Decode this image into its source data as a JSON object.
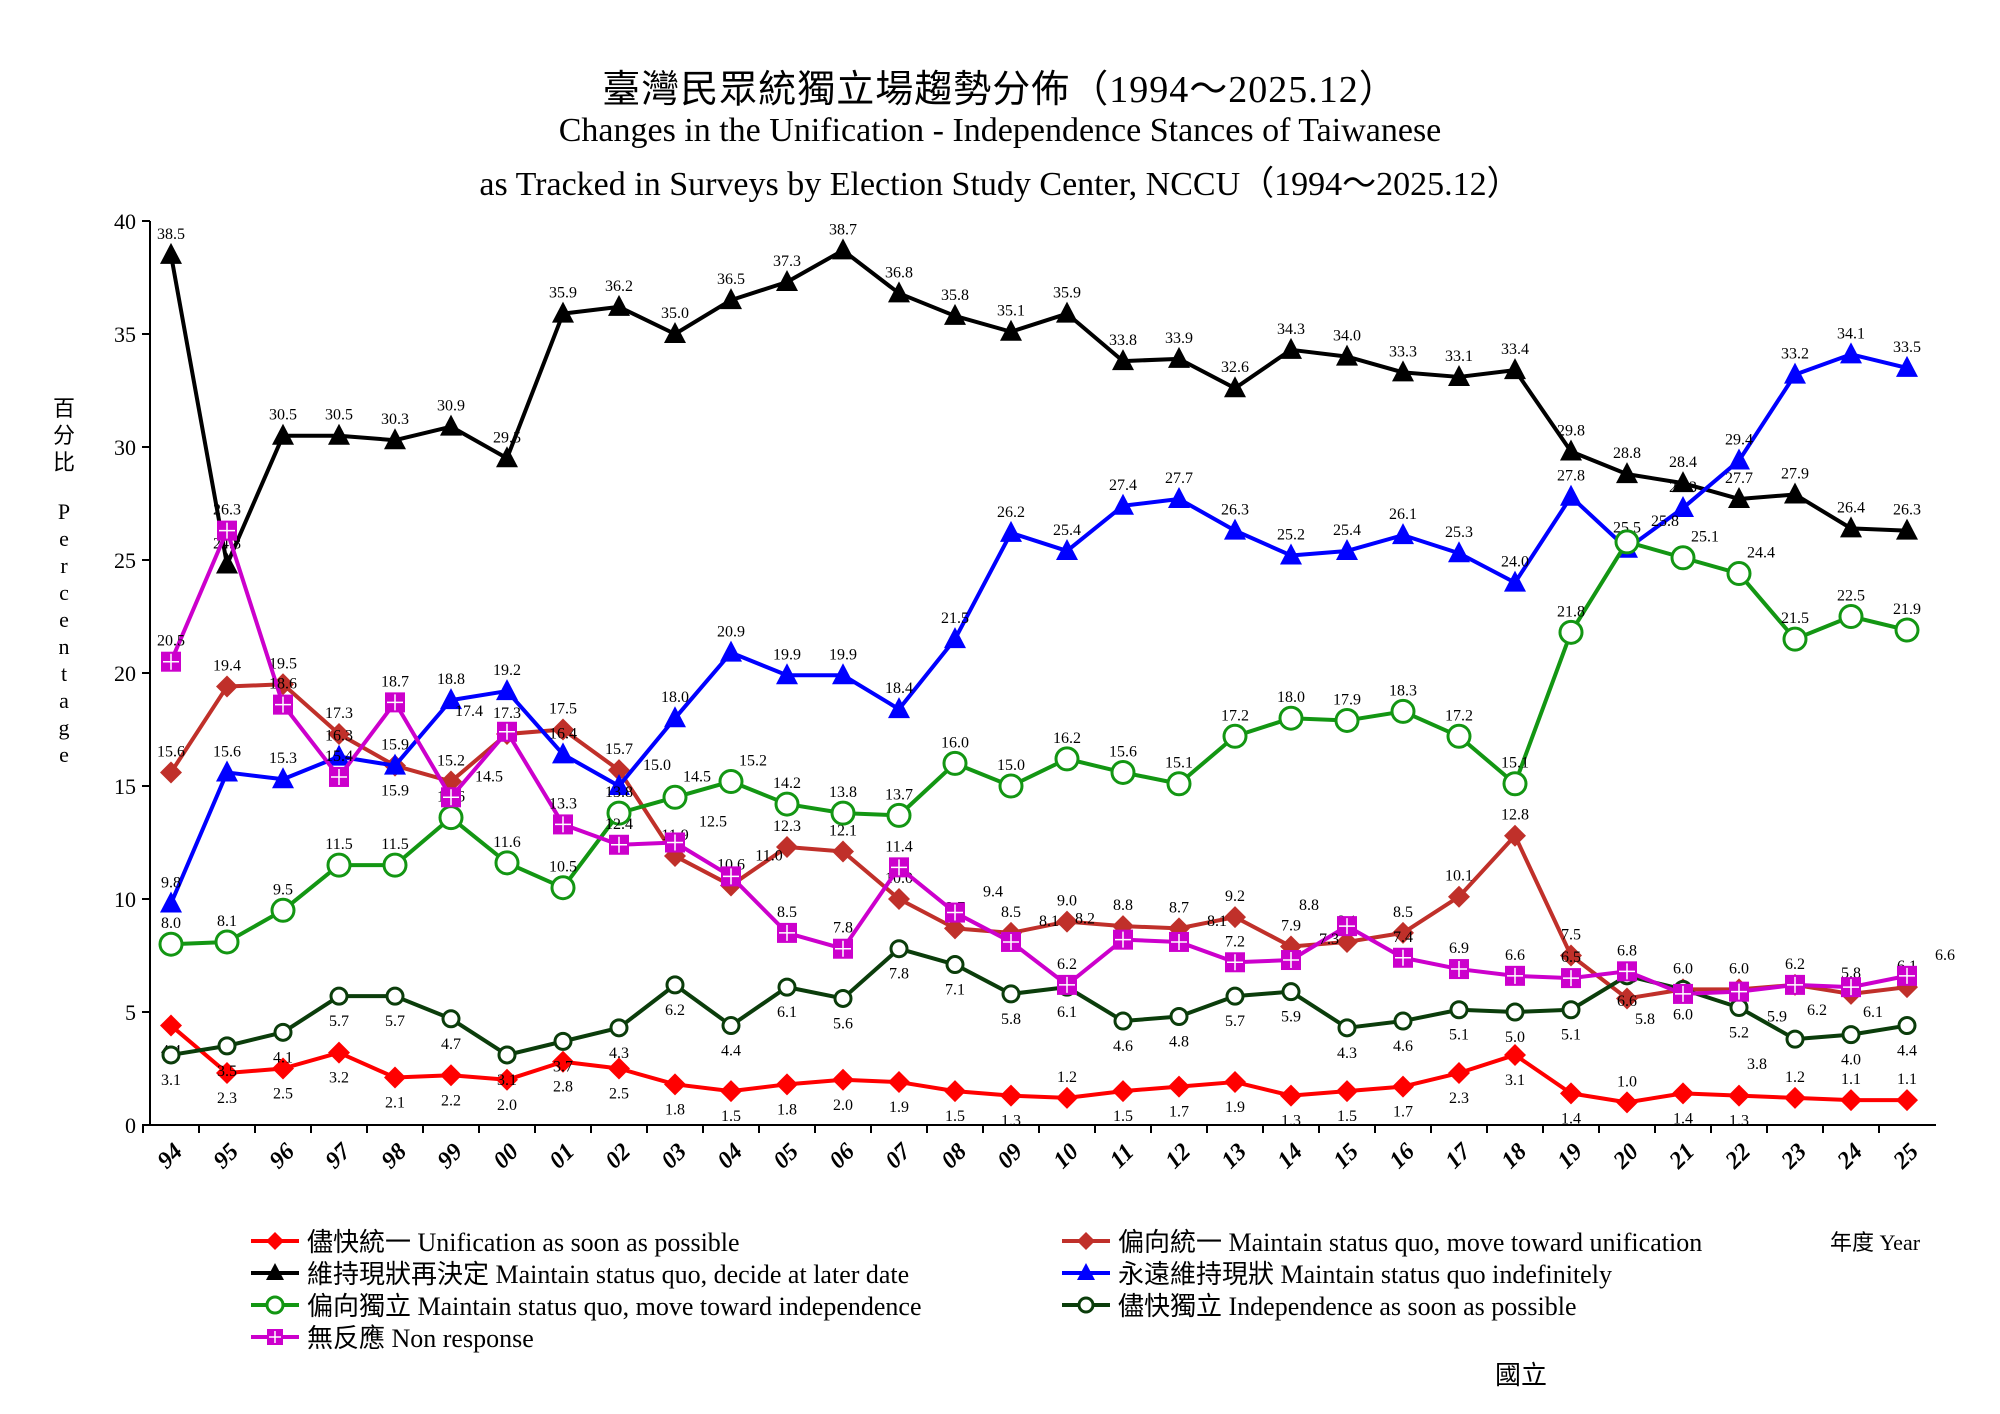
{
  "title_zh": "臺灣民眾統獨立場趨勢分佈（1994～2025.12）",
  "title_en_1": "Changes in the Unification - Independence Stances of Taiwanese",
  "title_en_2": "as Tracked in Surveys by Election Study Center, NCCU（1994～2025.12）",
  "credit": "國立",
  "chart_data": {
    "type": "line",
    "title": "臺灣民眾統獨立場趨勢分佈（1994～2025.12）",
    "ylabel_zh": "百分比",
    "ylabel_en": "Percentage",
    "xlabel": "年度 Year",
    "ylim": [
      0,
      40
    ],
    "yticks": [
      0,
      5,
      10,
      15,
      20,
      25,
      30,
      35,
      40
    ],
    "grid": false,
    "legend_position": "bottom",
    "categories": [
      "94",
      "95",
      "96",
      "97",
      "98",
      "99",
      "00",
      "01",
      "02",
      "03",
      "04",
      "05",
      "06",
      "07",
      "08",
      "09",
      "10",
      "11",
      "12",
      "13",
      "14",
      "15",
      "16",
      "17",
      "18",
      "19",
      "20",
      "21",
      "22",
      "23",
      "24",
      "25"
    ],
    "series": [
      {
        "name": "儘快統一 Unification as soon as possible",
        "color": "#ff0000",
        "marker": "diamond",
        "values": [
          4.4,
          2.3,
          2.5,
          3.2,
          2.1,
          2.2,
          2.0,
          2.8,
          2.5,
          1.8,
          1.5,
          1.8,
          2.0,
          1.9,
          1.5,
          1.3,
          1.2,
          1.5,
          1.7,
          1.9,
          1.3,
          1.5,
          1.7,
          2.3,
          3.1,
          1.4,
          1.0,
          1.4,
          1.3,
          1.2,
          1.1,
          1.1
        ]
      },
      {
        "name": "偏向統一 Maintain status quo, move toward unification",
        "color": "#c0302a",
        "marker": "diamond",
        "values": [
          15.6,
          19.4,
          19.5,
          17.3,
          15.9,
          15.2,
          17.3,
          17.5,
          15.7,
          11.9,
          10.6,
          12.3,
          12.1,
          10.0,
          8.7,
          8.5,
          9.0,
          8.8,
          8.7,
          9.2,
          7.9,
          8.1,
          8.5,
          10.1,
          12.8,
          7.5,
          5.6,
          6.0,
          6.0,
          6.2,
          5.8,
          6.1
        ]
      },
      {
        "name": "維持現狀再決定 Maintain status quo, decide at later date",
        "color": "#000000",
        "marker": "triangle",
        "values": [
          38.5,
          24.8,
          30.5,
          30.5,
          30.3,
          30.9,
          29.5,
          35.9,
          36.2,
          35.0,
          36.5,
          37.3,
          38.7,
          36.8,
          35.8,
          35.1,
          35.9,
          33.8,
          33.9,
          32.6,
          34.3,
          34.0,
          33.3,
          33.1,
          33.4,
          29.8,
          28.8,
          28.4,
          27.7,
          27.9,
          26.4,
          26.3
        ]
      },
      {
        "name": "永遠維持現狀 Maintain status quo indefinitely",
        "color": "#0000ff",
        "marker": "triangle",
        "values": [
          9.8,
          15.6,
          15.3,
          16.3,
          15.9,
          18.8,
          19.2,
          16.4,
          15.0,
          18.0,
          20.9,
          19.9,
          19.9,
          18.4,
          21.5,
          26.2,
          25.4,
          27.4,
          27.7,
          26.3,
          25.2,
          25.4,
          26.1,
          25.3,
          24.0,
          27.8,
          25.5,
          27.3,
          29.4,
          33.2,
          34.1,
          33.5
        ]
      },
      {
        "name": "偏向獨立 Maintain status quo, move toward independence",
        "color": "#139613",
        "marker": "circle",
        "values": [
          8.0,
          8.1,
          9.5,
          11.5,
          11.5,
          13.6,
          11.6,
          10.5,
          13.8,
          14.5,
          15.2,
          14.2,
          13.8,
          13.7,
          16.0,
          15.0,
          16.2,
          15.6,
          15.1,
          17.2,
          18.0,
          17.9,
          18.3,
          17.2,
          15.1,
          21.8,
          25.8,
          25.1,
          24.4,
          21.5,
          22.5,
          21.9
        ]
      },
      {
        "name": "儘快獨立 Independence as soon as possible",
        "color": "#0b3d0b",
        "marker": "smallcircle",
        "values": [
          3.1,
          3.5,
          4.1,
          5.7,
          5.7,
          4.7,
          3.1,
          3.7,
          4.3,
          6.2,
          4.4,
          6.1,
          5.6,
          7.8,
          7.1,
          5.8,
          6.1,
          4.6,
          4.8,
          5.7,
          5.9,
          4.3,
          4.6,
          5.1,
          5.0,
          5.1,
          6.6,
          6.0,
          5.2,
          3.8,
          4.0,
          4.4
        ]
      },
      {
        "name": "無反應 Non response",
        "color": "#cc00cc",
        "marker": "square",
        "values": [
          20.5,
          26.3,
          18.6,
          15.4,
          18.7,
          14.5,
          17.4,
          13.3,
          12.4,
          12.5,
          11.0,
          8.5,
          7.8,
          11.4,
          9.4,
          8.1,
          6.2,
          8.2,
          8.1,
          7.2,
          7.3,
          8.8,
          7.4,
          6.9,
          6.6,
          6.5,
          6.8,
          5.8,
          5.9,
          6.2,
          6.1,
          6.6
        ]
      }
    ]
  }
}
